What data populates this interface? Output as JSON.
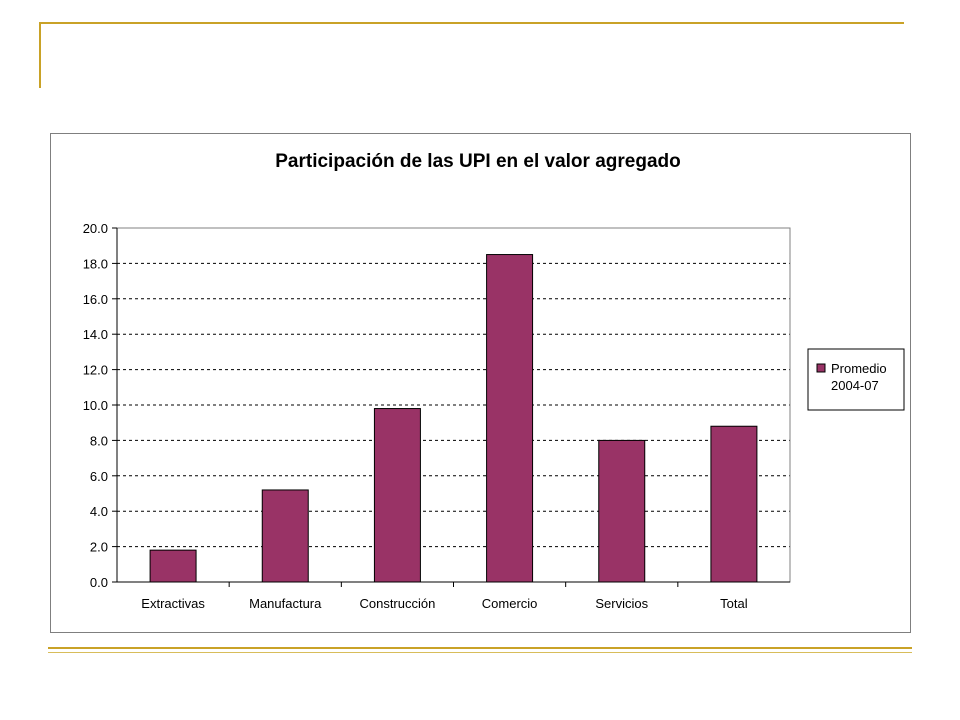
{
  "chart_data": {
    "type": "bar",
    "title": "Participación de las UPI en el valor agregado",
    "categories": [
      "Extractivas",
      "Manufactura",
      "Construcción",
      "Comercio",
      "Servicios",
      "Total"
    ],
    "series": [
      {
        "name": "Promedio 2004-07",
        "values": [
          1.8,
          5.2,
          9.8,
          18.5,
          8.0,
          8.8
        ]
      }
    ],
    "ylim": [
      0,
      20
    ],
    "yticks": [
      "0.0",
      "2.0",
      "4.0",
      "6.0",
      "8.0",
      "10.0",
      "12.0",
      "14.0",
      "16.0",
      "18.0",
      "20.0"
    ],
    "grid": "dashed horizontal",
    "legend_position": "right",
    "colors": {
      "bar": "#993366",
      "frame_accent": "#c9a227"
    }
  }
}
